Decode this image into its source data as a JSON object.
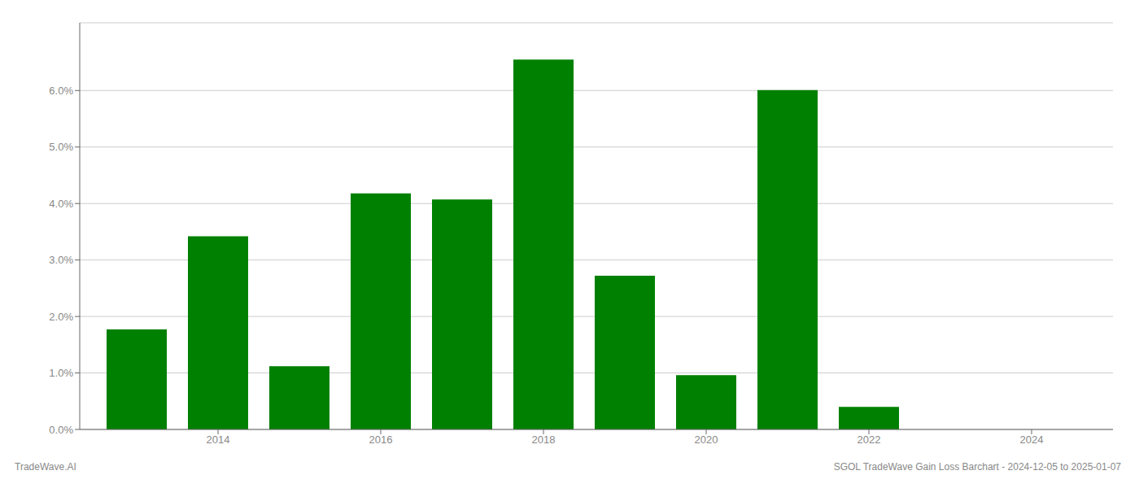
{
  "chart_data": {
    "type": "bar",
    "x": [
      2013,
      2014,
      2015,
      2016,
      2017,
      2018,
      2019,
      2020,
      2021,
      2022,
      2023,
      2024
    ],
    "values": [
      1.77,
      3.42,
      1.12,
      4.18,
      4.07,
      6.55,
      2.72,
      0.96,
      6.01,
      0.4,
      0.0,
      0.0
    ],
    "color": "#008000",
    "xlim": [
      2012.3,
      2025.0
    ],
    "xticks": [
      2014,
      2016,
      2018,
      2020,
      2022,
      2024
    ],
    "ylim": [
      0.0,
      7.2
    ],
    "yticks": [
      {
        "value": 0.0,
        "label": "0.0%"
      },
      {
        "value": 1.0,
        "label": "1.0%"
      },
      {
        "value": 2.0,
        "label": "2.0%"
      },
      {
        "value": 3.0,
        "label": "3.0%"
      },
      {
        "value": 4.0,
        "label": "4.0%"
      },
      {
        "value": 5.0,
        "label": "5.0%"
      },
      {
        "value": 6.0,
        "label": "6.0%"
      }
    ],
    "grid": true,
    "annotations": [
      "TradeWave.AI",
      "SGOL TradeWave Gain Loss Barchart - 2024-12-05 to 2025-01-07"
    ]
  }
}
